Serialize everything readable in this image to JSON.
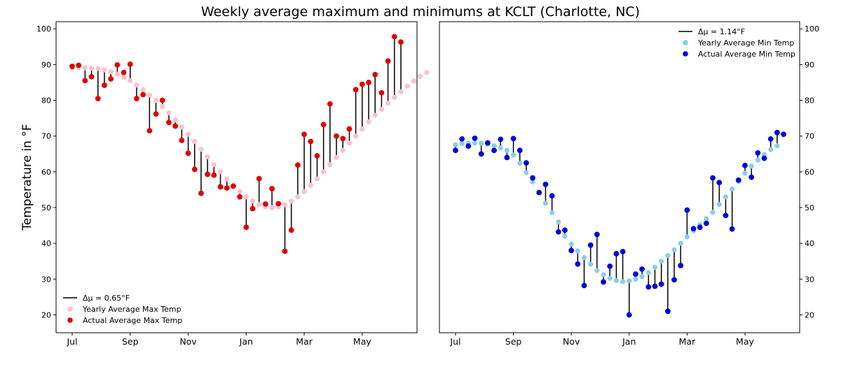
{
  "title": "Weekly average maximum and minimums at KCLT (Charlotte, NC)",
  "colors": {
    "max_yearly": "#ffc0cb",
    "max_actual": "#e00000",
    "min_yearly": "#87ceeb",
    "min_actual": "#0000dd",
    "stem": "#000000",
    "axes": "#000000"
  },
  "chart_data": [
    {
      "type": "scatter",
      "panel": "left",
      "ylabel": "Temperature in °F",
      "ylim": [
        15,
        102
      ],
      "yticks": [
        20,
        30,
        40,
        50,
        60,
        70,
        80,
        90,
        100
      ],
      "xlim": [
        -2.5,
        53.5
      ],
      "xticks": [
        {
          "week": 0,
          "label": "Jul"
        },
        {
          "week": 9,
          "label": "Sep"
        },
        {
          "week": 18,
          "label": "Nov"
        },
        {
          "week": 27,
          "label": "Jan"
        },
        {
          "week": 36,
          "label": "Mar"
        },
        {
          "week": 45,
          "label": "May"
        }
      ],
      "ytick_side": "left",
      "legend_position": "lower-left",
      "stem_label": "Δμ = 0.65°F",
      "series": [
        {
          "name": "Yearly Average Max Temp",
          "role": "yearly",
          "values": [
            89.0,
            89.2,
            89.1,
            89.0,
            88.9,
            88.5,
            88.0,
            87.3,
            86.5,
            85.5,
            84.3,
            83.0,
            81.5,
            80.0,
            78.3,
            76.5,
            74.5,
            72.5,
            70.5,
            68.5,
            66.3,
            64.2,
            62.0,
            60.0,
            58.0,
            56.2,
            54.5,
            53.0,
            51.8,
            50.8,
            50.2,
            50.0,
            50.2,
            50.8,
            51.8,
            53.0,
            54.5,
            56.2,
            58.0,
            60.0,
            62.0,
            64.0,
            66.0,
            68.0,
            70.0,
            72.0,
            74.0,
            75.8,
            77.5,
            79.2,
            80.8,
            82.4,
            84.0,
            85.4,
            86.7,
            87.8
          ]
        },
        {
          "name": "Actual Average Max Temp",
          "role": "actual",
          "values": [
            89.5,
            89.8,
            85.5,
            86.6,
            80.5,
            84.2,
            86.0,
            89.9,
            87.8,
            90.1,
            80.5,
            81.6,
            71.5,
            76.2,
            80.0,
            73.8,
            72.8,
            68.8,
            65.2,
            60.7,
            54.0,
            59.3,
            59.1,
            55.8,
            55.5,
            56.0,
            53.0,
            44.5,
            49.7,
            58.1,
            51.0,
            55.3,
            51.1,
            37.8,
            43.7,
            61.9,
            70.5,
            68.5,
            64.5,
            73.2,
            79.0,
            70.0,
            69.3,
            72.0,
            83.0,
            84.5,
            85.0,
            87.2,
            82.1,
            91.0,
            97.8,
            96.3
          ]
        }
      ]
    },
    {
      "type": "scatter",
      "panel": "right",
      "ylim": [
        15,
        102
      ],
      "yticks": [
        20,
        30,
        40,
        50,
        60,
        70,
        80,
        90,
        100
      ],
      "xlim": [
        -2.5,
        53.5
      ],
      "xticks": [
        {
          "week": 0,
          "label": "Jul"
        },
        {
          "week": 9,
          "label": "Sep"
        },
        {
          "week": 18,
          "label": "Nov"
        },
        {
          "week": 27,
          "label": "Jan"
        },
        {
          "week": 36,
          "label": "Mar"
        },
        {
          "week": 45,
          "label": "May"
        }
      ],
      "ytick_side": "right",
      "legend_position": "upper-right",
      "stem_label": "Δμ = 1.14°F",
      "series": [
        {
          "name": "Yearly Average Min Temp",
          "role": "yearly",
          "values": [
            67.6,
            67.9,
            68.0,
            68.1,
            68.0,
            67.7,
            67.3,
            66.7,
            66.0,
            64.7,
            62.4,
            59.8,
            57.2,
            54.2,
            51.2,
            48.6,
            46.0,
            42.0,
            39.8,
            37.9,
            36.0,
            34.2,
            32.4,
            31.2,
            30.2,
            29.6,
            29.3,
            29.5,
            30.0,
            30.7,
            31.8,
            33.3,
            35.0,
            36.6,
            38.2,
            40.0,
            41.8,
            43.5,
            45.2,
            46.9,
            48.7,
            50.9,
            53.0,
            55.2,
            57.3,
            59.6,
            61.6,
            63.3,
            64.8,
            66.2,
            67.3
          ]
        },
        {
          "name": "Actual Average Min Temp",
          "role": "actual",
          "values": [
            66.0,
            69.2,
            67.2,
            69.4,
            65.0,
            68.1,
            66.0,
            69.1,
            64.0,
            69.3,
            66.0,
            62.5,
            58.3,
            54.2,
            56.5,
            53.3,
            43.2,
            43.7,
            38.0,
            34.2,
            28.2,
            39.5,
            42.5,
            29.2,
            33.6,
            37.1,
            37.7,
            20.0,
            31.4,
            32.8,
            27.8,
            28.0,
            28.6,
            21.0,
            29.8,
            33.8,
            49.3,
            44.1,
            44.5,
            45.6,
            58.3,
            57.0,
            47.8,
            44.0,
            57.7,
            61.8,
            58.5,
            65.3,
            63.8,
            69.2,
            71.0,
            70.5
          ]
        }
      ]
    }
  ]
}
